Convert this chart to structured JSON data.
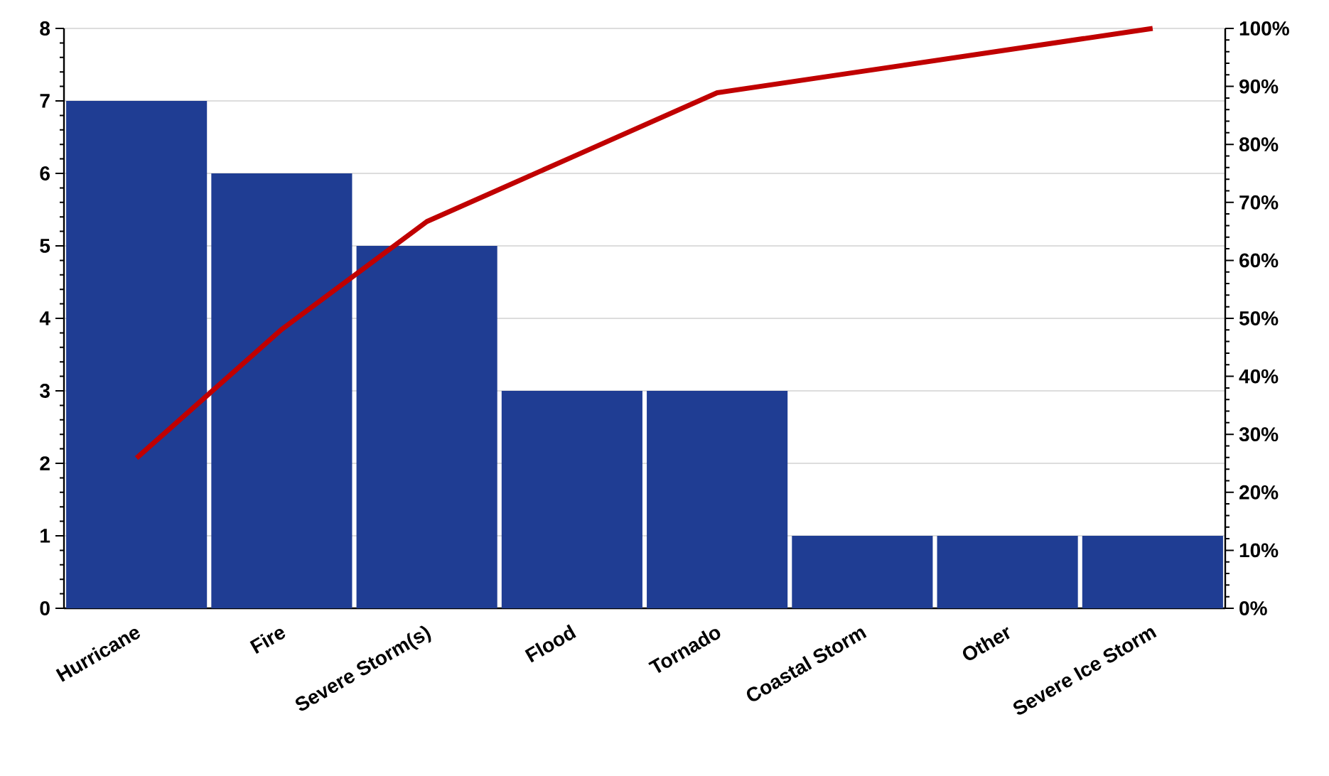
{
  "chart_data": {
    "type": "bar",
    "categories": [
      "Hurricane",
      "Fire",
      "Severe Storm(s)",
      "Flood",
      "Tornado",
      "Coastal Storm",
      "Other",
      "Severe Ice Storm"
    ],
    "series": [
      {
        "color": "#1f3d93",
        "values": [
          7,
          6,
          5,
          3,
          3,
          1,
          1,
          1
        ]
      },
      {
        "type": "line",
        "axis": "y2",
        "color": "#c00000",
        "values": [
          25.9,
          48.1,
          66.7,
          77.8,
          88.9,
          92.6,
          96.3,
          100
        ]
      }
    ],
    "ylim": [
      0,
      8
    ],
    "yticks": [
      0,
      1,
      2,
      3,
      4,
      5,
      6,
      7,
      8
    ],
    "y2lim": [
      0,
      100
    ],
    "y2ticks": [
      {
        "value": 0,
        "label": "0%"
      },
      {
        "value": 10,
        "label": "10%"
      },
      {
        "value": 20,
        "label": "20%"
      },
      {
        "value": 30,
        "label": "30%"
      },
      {
        "value": 40,
        "label": "40%"
      },
      {
        "value": 50,
        "label": "50%"
      },
      {
        "value": 60,
        "label": "60%"
      },
      {
        "value": 70,
        "label": "70%"
      },
      {
        "value": 80,
        "label": "80%"
      },
      {
        "value": 90,
        "label": "90%"
      },
      {
        "value": 100,
        "label": "100%"
      }
    ],
    "grid": "y"
  }
}
